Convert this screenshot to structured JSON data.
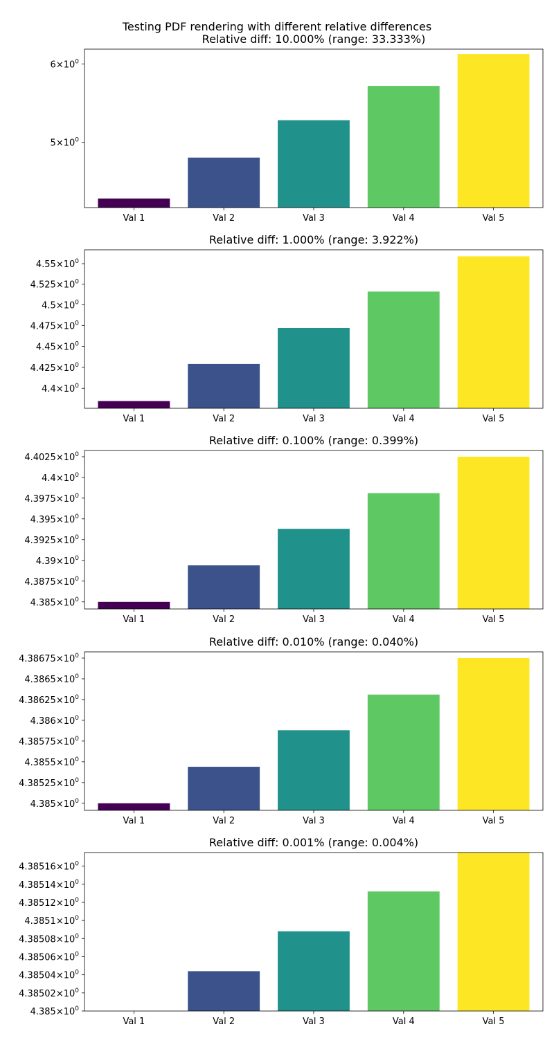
{
  "figure": {
    "suptitle": "Testing PDF rendering with different relative differences"
  },
  "chart_data": [
    {
      "type": "bar",
      "title": "Relative diff: 10.000% (range: 33.333%)",
      "categories": [
        "Val 1",
        "Val 2",
        "Val 3",
        "Val 4",
        "Val 5"
      ],
      "values": [
        4.385,
        4.8235,
        5.262,
        5.7005,
        6.139
      ],
      "bar_colors": [
        "#440154",
        "#3b528b",
        "#21918c",
        "#5ec962",
        "#fde725"
      ],
      "yscale": "log",
      "ylim": [
        4.293,
        6.21
      ],
      "yticks": [
        {
          "value": 5,
          "mantissa": "5"
        },
        {
          "value": 6,
          "mantissa": "6"
        }
      ],
      "xlabel": "",
      "ylabel": "",
      "grid": false,
      "legend": "none"
    },
    {
      "type": "bar",
      "title": "Relative diff: 1.000% (range: 3.922%)",
      "categories": [
        "Val 1",
        "Val 2",
        "Val 3",
        "Val 4",
        "Val 5"
      ],
      "values": [
        4.385,
        4.429,
        4.472,
        4.516,
        4.559
      ],
      "bar_colors": [
        "#440154",
        "#3b528b",
        "#21918c",
        "#5ec962",
        "#fde725"
      ],
      "yscale": "log",
      "ylim": [
        4.3765,
        4.567
      ],
      "yticks": [
        {
          "value": 4.4,
          "mantissa": "4.4"
        },
        {
          "value": 4.425,
          "mantissa": "4.425"
        },
        {
          "value": 4.45,
          "mantissa": "4.45"
        },
        {
          "value": 4.475,
          "mantissa": "4.475"
        },
        {
          "value": 4.5,
          "mantissa": "4.5"
        },
        {
          "value": 4.525,
          "mantissa": "4.525"
        },
        {
          "value": 4.55,
          "mantissa": "4.55"
        }
      ],
      "xlabel": "",
      "ylabel": "",
      "grid": false,
      "legend": "none"
    },
    {
      "type": "bar",
      "title": "Relative diff: 0.100% (range: 0.399%)",
      "categories": [
        "Val 1",
        "Val 2",
        "Val 3",
        "Val 4",
        "Val 5"
      ],
      "values": [
        4.385,
        4.3894,
        4.3938,
        4.3981,
        4.4025
      ],
      "bar_colors": [
        "#440154",
        "#3b528b",
        "#21918c",
        "#5ec962",
        "#fde725"
      ],
      "yscale": "log",
      "ylim": [
        4.38415,
        4.40325
      ],
      "yticks": [
        {
          "value": 4.385,
          "mantissa": "4.385"
        },
        {
          "value": 4.3875,
          "mantissa": "4.3875"
        },
        {
          "value": 4.39,
          "mantissa": "4.39"
        },
        {
          "value": 4.3925,
          "mantissa": "4.3925"
        },
        {
          "value": 4.395,
          "mantissa": "4.395"
        },
        {
          "value": 4.3975,
          "mantissa": "4.3975"
        },
        {
          "value": 4.4,
          "mantissa": "4.4"
        },
        {
          "value": 4.4025,
          "mantissa": "4.4025"
        }
      ],
      "xlabel": "",
      "ylabel": "",
      "grid": false,
      "legend": "none"
    },
    {
      "type": "bar",
      "title": "Relative diff: 0.010% (range: 0.040%)",
      "categories": [
        "Val 1",
        "Val 2",
        "Val 3",
        "Val 4",
        "Val 5"
      ],
      "values": [
        4.385,
        4.38544,
        4.38588,
        4.38631,
        4.38675
      ],
      "bar_colors": [
        "#440154",
        "#3b528b",
        "#21918c",
        "#5ec962",
        "#fde725"
      ],
      "yscale": "log",
      "ylim": [
        4.384915,
        4.386825
      ],
      "yticks": [
        {
          "value": 4.385,
          "mantissa": "4.385"
        },
        {
          "value": 4.38525,
          "mantissa": "4.38525"
        },
        {
          "value": 4.3855,
          "mantissa": "4.3855"
        },
        {
          "value": 4.38575,
          "mantissa": "4.38575"
        },
        {
          "value": 4.386,
          "mantissa": "4.386"
        },
        {
          "value": 4.38625,
          "mantissa": "4.38625"
        },
        {
          "value": 4.3865,
          "mantissa": "4.3865"
        },
        {
          "value": 4.38675,
          "mantissa": "4.38675"
        }
      ],
      "xlabel": "",
      "ylabel": "",
      "grid": false,
      "legend": "none"
    },
    {
      "type": "bar",
      "title": "Relative diff: 0.001% (range: 0.004%)",
      "categories": [
        "Val 1",
        "Val 2",
        "Val 3",
        "Val 4",
        "Val 5"
      ],
      "values": [
        4.385,
        4.385044,
        4.385088,
        4.385132,
        4.385175
      ],
      "bar_colors": [
        "#440154",
        "#3b528b",
        "#21918c",
        "#5ec962",
        "#fde725"
      ],
      "yscale": "log",
      "ylim": [
        4.385,
        4.385175
      ],
      "yticks": [
        {
          "value": 4.385,
          "mantissa": "4.385"
        },
        {
          "value": 4.38502,
          "mantissa": "4.38502"
        },
        {
          "value": 4.38504,
          "mantissa": "4.38504"
        },
        {
          "value": 4.38506,
          "mantissa": "4.38506"
        },
        {
          "value": 4.38508,
          "mantissa": "4.38508"
        },
        {
          "value": 4.3851,
          "mantissa": "4.3851"
        },
        {
          "value": 4.38512,
          "mantissa": "4.38512"
        },
        {
          "value": 4.38514,
          "mantissa": "4.38514"
        },
        {
          "value": 4.38516,
          "mantissa": "4.38516"
        }
      ],
      "xlabel": "",
      "ylabel": "",
      "grid": false,
      "legend": "none"
    }
  ]
}
